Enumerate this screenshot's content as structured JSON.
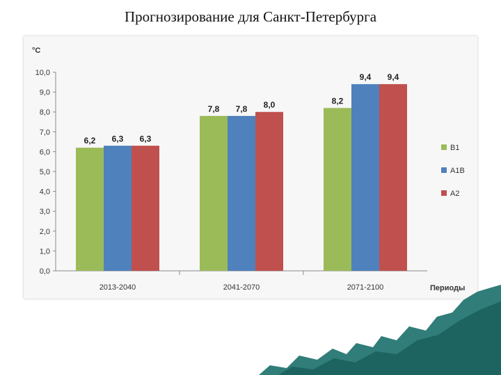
{
  "slide": {
    "title": "Прогнозирование для Санкт-Петербурга"
  },
  "chart_data": {
    "type": "bar",
    "ylabel": "°C",
    "xlabel": "Периоды",
    "ylim": [
      0,
      10
    ],
    "yticks": [
      "0,0",
      "1,0",
      "2,0",
      "3,0",
      "4,0",
      "5,0",
      "6,0",
      "7,0",
      "8,0",
      "9,0",
      "10,0"
    ],
    "categories": [
      "2013-2040",
      "2041-2070",
      "2071-2100"
    ],
    "series": [
      {
        "name": "B1",
        "color": "#9bbb59",
        "values": [
          6.2,
          7.8,
          8.2
        ],
        "labels": [
          "6,2",
          "7,8",
          "8,2"
        ]
      },
      {
        "name": "A1B",
        "color": "#4f81bd",
        "values": [
          6.3,
          7.8,
          9.4
        ],
        "labels": [
          "6,3",
          "7,8",
          "9,4"
        ]
      },
      {
        "name": "A2",
        "color": "#c0504d",
        "values": [
          6.3,
          8.0,
          9.4
        ],
        "labels": [
          "6,3",
          "8,0",
          "9,4"
        ]
      }
    ],
    "legend_position": "right",
    "grid": false
  },
  "decoration": {
    "color": "#1a6f6a",
    "icon": "teal-wave-decoration"
  }
}
